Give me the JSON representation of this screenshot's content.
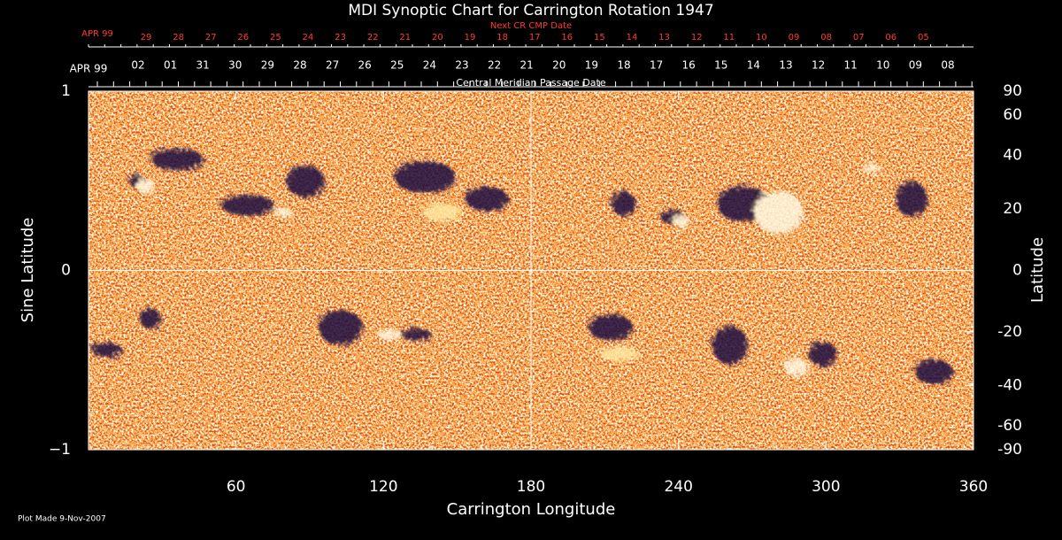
{
  "chart_data": {
    "type": "image",
    "title": "MDI Synoptic Chart for Carrington Rotation 1947",
    "top_axis_label": "Next CR CMP Date",
    "top_axis_month": "APR 99",
    "top_axis_dates": [
      "29",
      "28",
      "27",
      "26",
      "25",
      "24",
      "23",
      "22",
      "21",
      "20",
      "19",
      "18",
      "17",
      "16",
      "15",
      "14",
      "13",
      "12",
      "11",
      "10",
      "09",
      "08",
      "07",
      "06",
      "05"
    ],
    "date_axis_label": "Central Meridian Passage Date",
    "date_axis_month": "APR 99",
    "date_axis_dates": [
      "02",
      "01",
      "31",
      "30",
      "29",
      "28",
      "27",
      "26",
      "25",
      "24",
      "23",
      "22",
      "21",
      "20",
      "19",
      "18",
      "17",
      "16",
      "15",
      "14",
      "13",
      "12",
      "11",
      "10",
      "09",
      "08"
    ],
    "xlabel": "Carrington Longitude",
    "xlim": [
      0,
      360
    ],
    "xticks": [
      60,
      120,
      180,
      240,
      300,
      360
    ],
    "ylabel": "Sine Latitude",
    "ylim": [
      -1,
      1
    ],
    "yticks": [
      {
        "value": -1,
        "label": "−1"
      },
      0,
      1
    ],
    "y2label": "Latitude",
    "y2lim": [
      -90,
      90
    ],
    "y2scale": "sine",
    "y2ticks": [
      -90,
      -60,
      -40,
      -20,
      0,
      20,
      40,
      60,
      90
    ],
    "footnote": "Plot Made  9-Nov-2007"
  }
}
